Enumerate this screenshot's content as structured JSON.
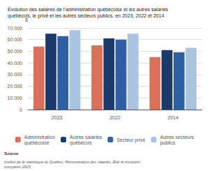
{
  "chart_data": {
    "type": "bar",
    "title": "Évolution des salaires de l’administration québécoise et les autres salariés\nquébécois, le privé et les autres secteurs publics, en 2023, 2022 et 2014",
    "y_label": "$",
    "categories": [
      "2023",
      "2022",
      "2014"
    ],
    "series": [
      {
        "name": "Administration\nquébécoise",
        "color": "#D9715A",
        "values": [
          54000,
          55000,
          45000
        ]
      },
      {
        "name": "Autres salariés\nquébécois",
        "color": "#1B3A6B",
        "values": [
          65000,
          61000,
          51000
        ]
      },
      {
        "name": "Secteur privé",
        "color": "#2E5FA3",
        "values": [
          63000,
          60000,
          49000
        ]
      },
      {
        "name": "Autres secteurs\npublics",
        "color": "#A8C4E0",
        "values": [
          68000,
          65000,
          53000
        ]
      }
    ],
    "ylim": [
      0,
      70000
    ],
    "yticks": [
      0,
      {
        "value": 10000,
        "label": "10 000"
      },
      {
        "value": 20000,
        "label": "20 000"
      },
      {
        "value": 30000,
        "label": "30 000"
      },
      {
        "value": 40000,
        "label": "40 000"
      },
      {
        "value": 50000,
        "label": "50 000"
      },
      {
        "value": 60000,
        "label": "60 000"
      },
      {
        "value": 70000,
        "label": "70 000"
      }
    ],
    "grid": true,
    "legend": "bottom",
    "annotations": [
      "Source",
      "Institut de la statistique du Québec, Rémunération des salariés. État et évolution comparés 2023."
    ]
  }
}
